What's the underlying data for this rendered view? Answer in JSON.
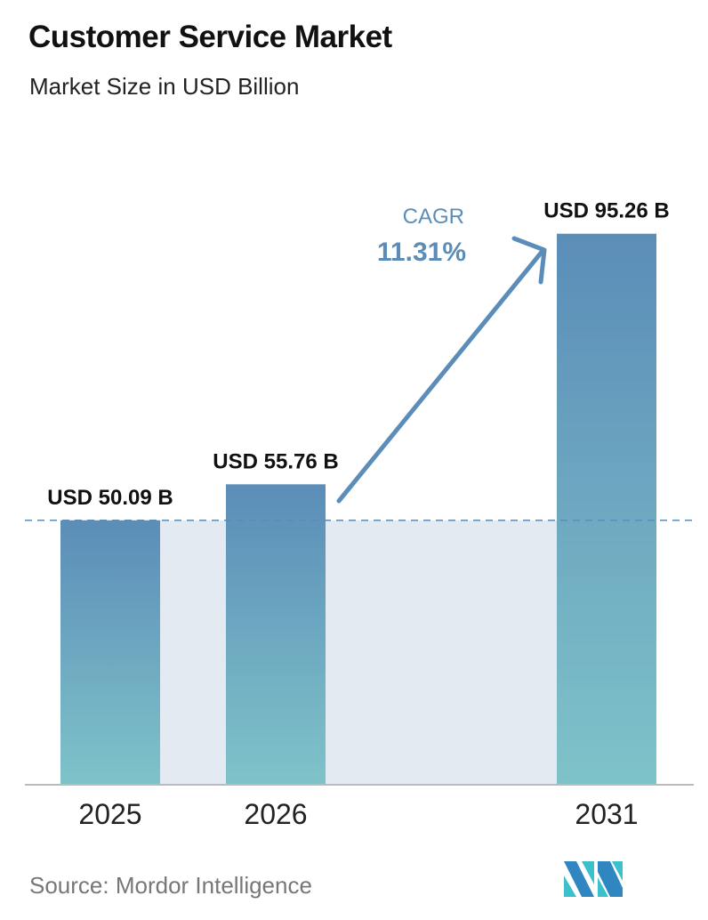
{
  "title": "Customer Service Market",
  "subtitle": "Market Size in USD Billion",
  "source": "Source:  Mordor Intelligence",
  "chart_data": {
    "type": "bar",
    "categories": [
      "2025",
      "2026",
      "2031"
    ],
    "values": [
      50.09,
      55.76,
      95.26
    ],
    "data_labels": [
      "USD 50.09 B",
      "USD 55.76 B",
      "USD 95.26 B"
    ],
    "annotation": {
      "label": "CAGR",
      "value": "11.31%"
    },
    "colors": {
      "bar_top": "#5b8db8",
      "bar_bottom": "#7fc3c9",
      "annotation": "#5b8db8",
      "band": "#e3eaf1"
    }
  }
}
